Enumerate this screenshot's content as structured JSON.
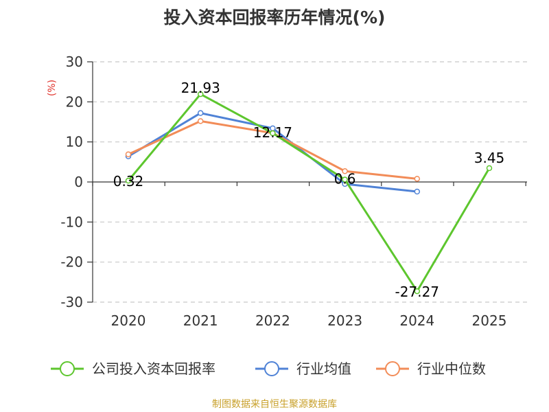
{
  "chart_data": {
    "type": "line",
    "title": "投入资本回报率历年情况(%)",
    "ylabel": "(%)",
    "xlabel": "",
    "categories": [
      "2020",
      "2021",
      "2022",
      "2023",
      "2024",
      "2025"
    ],
    "ylim": [
      -30,
      30
    ],
    "yticks": [
      30,
      20,
      10,
      0,
      -10,
      -20,
      -30
    ],
    "grid": true,
    "legend_position": "bottom",
    "series": [
      {
        "name": "公司投入资本回报率",
        "color": "#5dc62e",
        "values": [
          0.32,
          21.93,
          12.17,
          0.6,
          -27.27,
          3.45
        ],
        "labels": [
          "0.32",
          "21.93",
          "12.17",
          "0.6",
          "-27.27",
          "3.45"
        ]
      },
      {
        "name": "行业均值",
        "color": "#4f82d6",
        "values": [
          6.4,
          17.2,
          13.4,
          -0.5,
          -2.4,
          null
        ]
      },
      {
        "name": "行业中位数",
        "color": "#f28c58",
        "values": [
          6.9,
          15.2,
          12.2,
          2.7,
          0.8,
          null
        ]
      }
    ]
  },
  "footer": {
    "source": "制图数据来自恒生聚源数据库"
  }
}
